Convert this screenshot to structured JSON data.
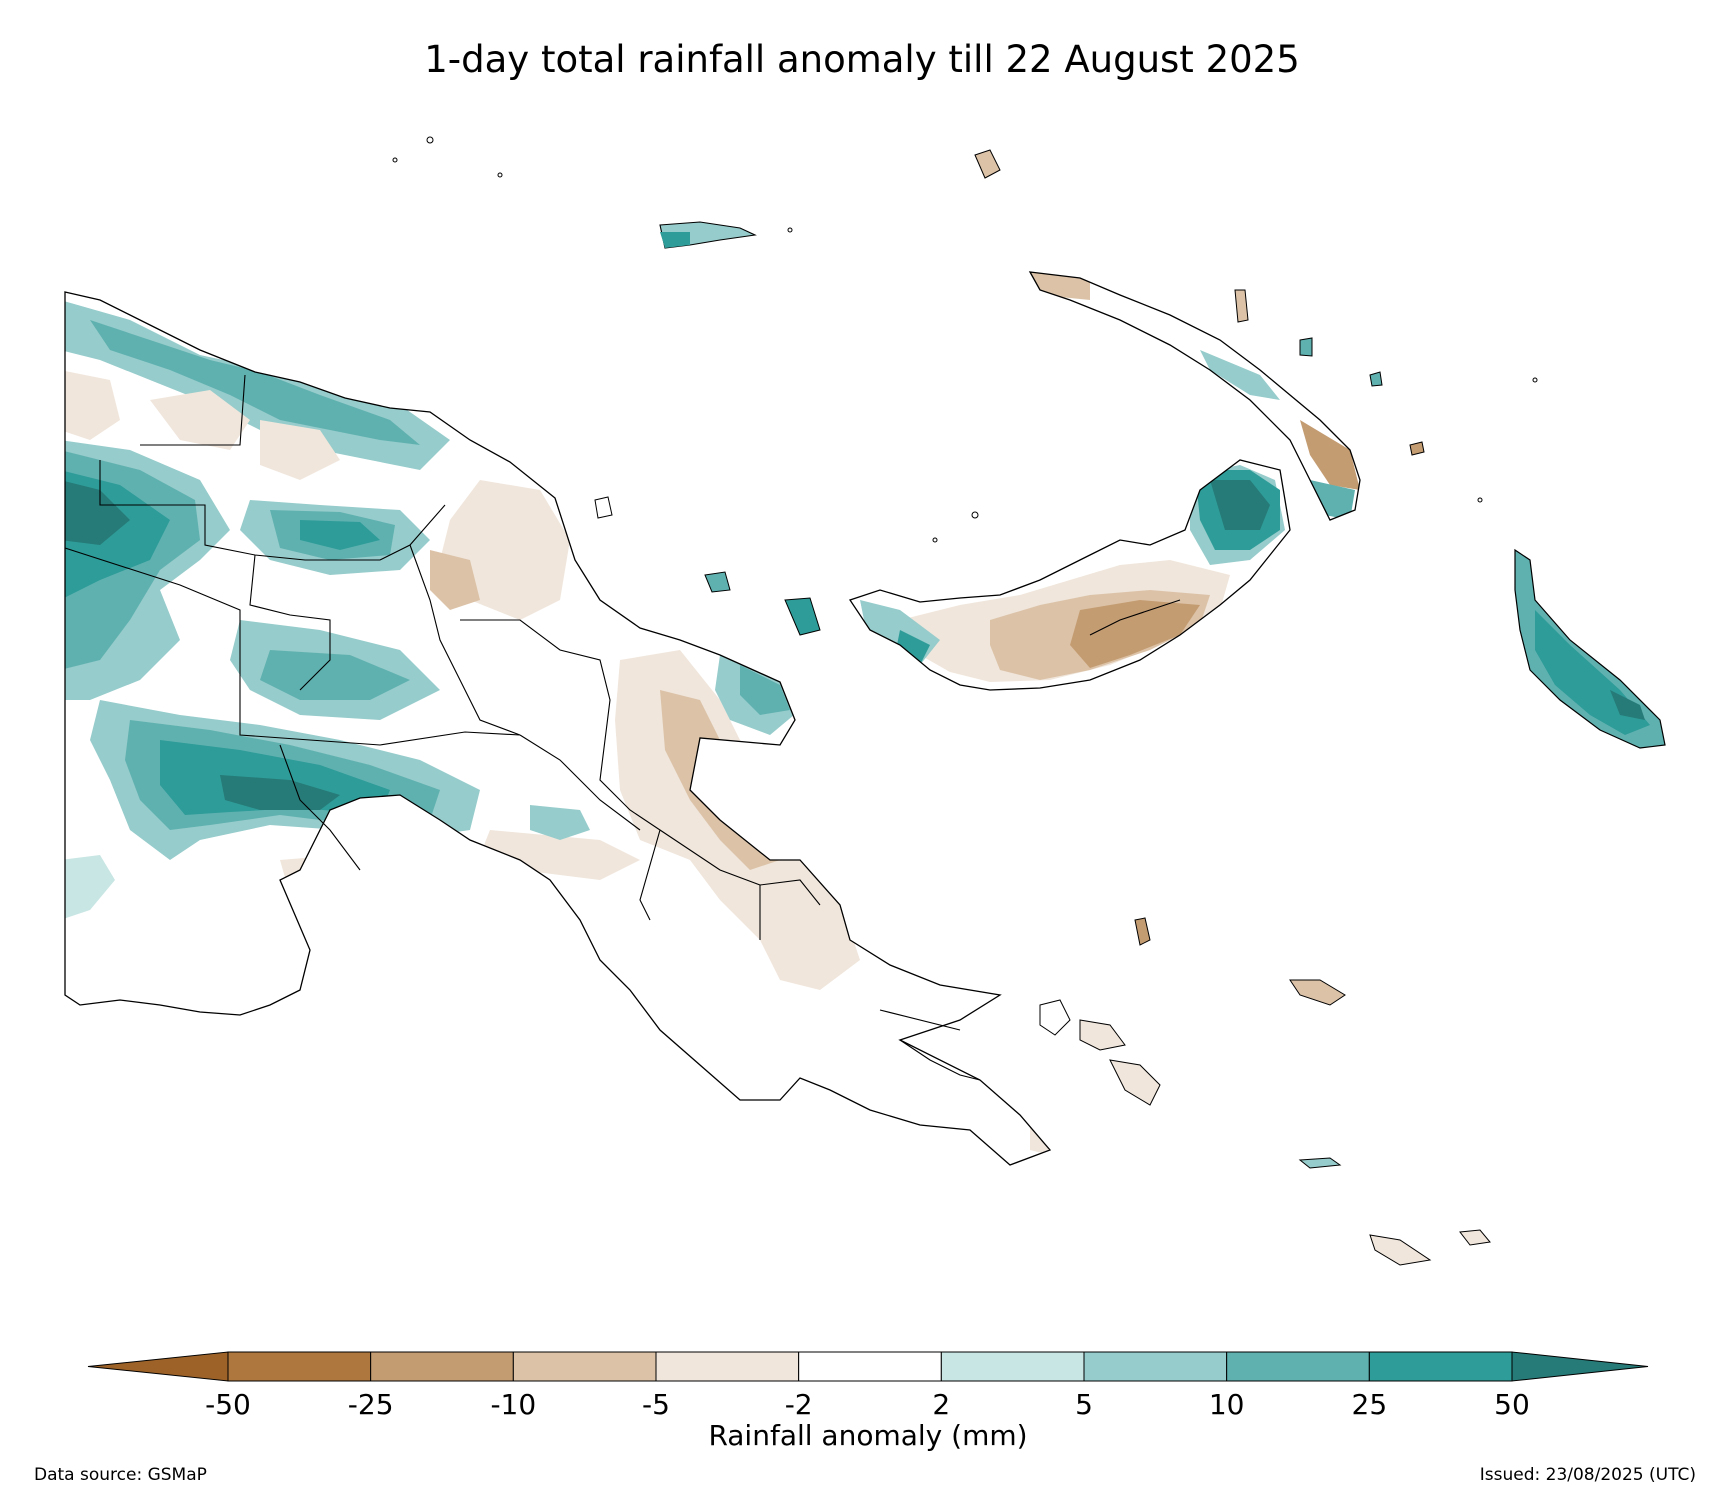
{
  "title": "1-day total rainfall anomaly till 22 August 2025",
  "colorbar": {
    "label": "Rainfall anomaly (mm)",
    "ticks": [
      "-50",
      "-25",
      "-10",
      "-5",
      "-2",
      "2",
      "5",
      "10",
      "25",
      "50"
    ],
    "colors": [
      "#9c6228",
      "#ae773e",
      "#c49c72",
      "#dcc3a8",
      "#f0e6dc",
      "#ffffff",
      "#c8e6e4",
      "#96cccb",
      "#5fb1b0",
      "#2e9c98",
      "#267a77"
    ]
  },
  "footer": {
    "source": "Data source: GSMaP",
    "issued": "Issued: 23/08/2025 (UTC)"
  },
  "palette": {
    "dry_strong": "#c49c72",
    "dry_mid": "#dcc3a8",
    "dry_light": "#f0e6dc",
    "wet_light": "#c8e6e4",
    "wet_mid": "#96cccb",
    "wet_high": "#5fb1b0",
    "wet_strong": "#2e9c98",
    "wet_max": "#267a77"
  }
}
